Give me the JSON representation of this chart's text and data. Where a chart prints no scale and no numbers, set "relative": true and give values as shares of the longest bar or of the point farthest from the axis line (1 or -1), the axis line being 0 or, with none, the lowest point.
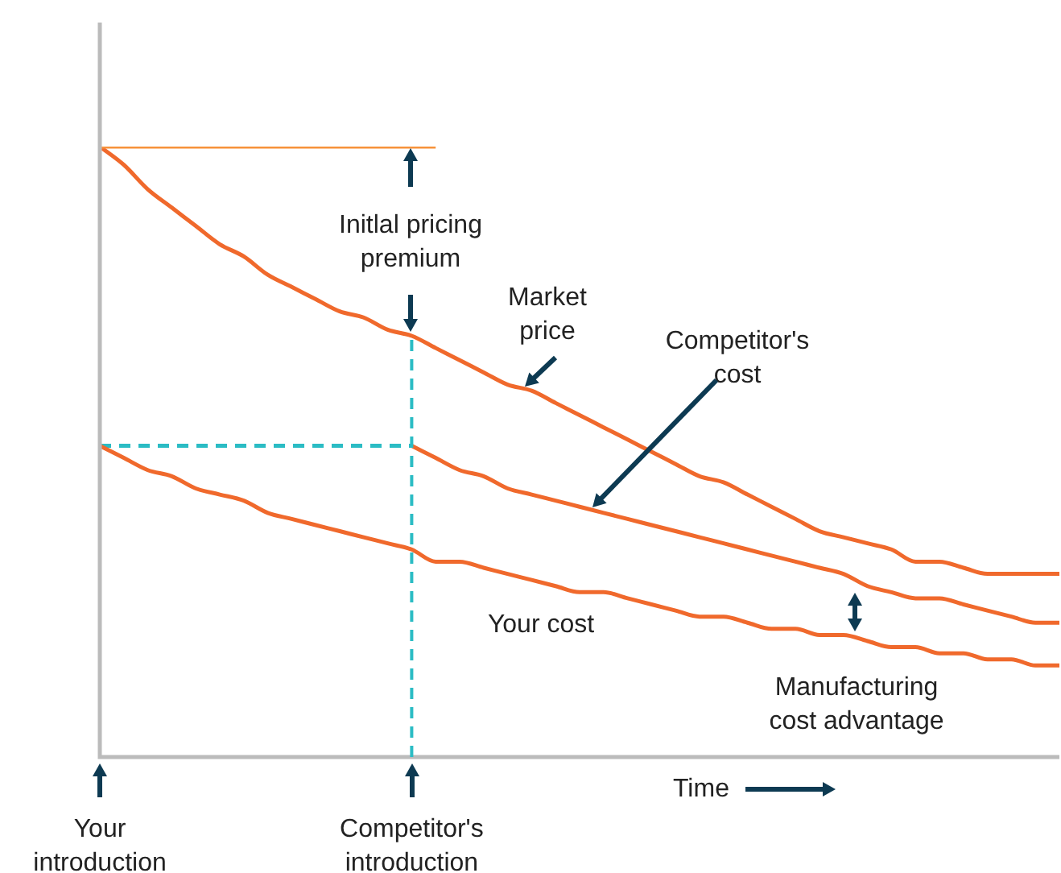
{
  "chart_data": {
    "type": "line",
    "relative": true,
    "tick_labels": "x",
    "marker": "none",
    "xlabel": "Time",
    "categories": [
      "Your introduction",
      null,
      null,
      null,
      null,
      null,
      null,
      null,
      null,
      null,
      null,
      null,
      null,
      "Competitor's introduction",
      null,
      null,
      null,
      null,
      null,
      null,
      null,
      null,
      null,
      null,
      null,
      null,
      null,
      null,
      null,
      null,
      null,
      null,
      null,
      null,
      null,
      null,
      null,
      null,
      null,
      null,
      null
    ],
    "series": [
      {
        "color": "#f7923a",
        "line_style": "solid",
        "values": [
          1.0,
          1.0,
          1.0,
          1.0,
          1.0,
          1.0,
          1.0,
          1.0,
          1.0,
          1.0,
          1.0,
          1.0,
          1.0,
          1.0,
          1.0,
          null,
          null,
          null,
          null,
          null,
          null,
          null,
          null,
          null,
          null,
          null,
          null,
          null,
          null,
          null,
          null,
          null,
          null,
          null,
          null,
          null,
          null,
          null,
          null,
          null,
          null
        ]
      },
      {
        "color": "#f0692c",
        "line_style": "solid",
        "values": [
          1.0,
          0.97,
          0.93,
          0.9,
          0.87,
          0.84,
          0.82,
          0.79,
          0.77,
          0.75,
          0.73,
          0.72,
          0.7,
          0.69,
          0.67,
          0.65,
          0.63,
          0.61,
          0.6,
          0.58,
          0.56,
          0.54,
          0.52,
          0.5,
          0.48,
          0.46,
          0.45,
          0.43,
          0.41,
          0.39,
          0.37,
          0.36,
          0.35,
          0.34,
          0.32,
          0.32,
          0.31,
          0.3,
          0.3,
          0.3,
          0.3
        ]
      },
      {
        "color": "#f0692c",
        "line_style": "solid",
        "values": [
          null,
          null,
          null,
          null,
          null,
          null,
          null,
          null,
          null,
          null,
          null,
          null,
          null,
          0.51,
          0.49,
          0.47,
          0.46,
          0.44,
          0.43,
          0.42,
          0.41,
          0.4,
          0.39,
          0.38,
          0.37,
          0.36,
          0.35,
          0.34,
          0.33,
          0.32,
          0.31,
          0.3,
          0.28,
          0.27,
          0.26,
          0.26,
          0.25,
          0.24,
          0.23,
          0.22,
          0.22
        ]
      },
      {
        "color": "#f0692c",
        "line_style": "solid",
        "values": [
          0.51,
          0.49,
          0.47,
          0.46,
          0.44,
          0.43,
          0.42,
          0.4,
          0.39,
          0.38,
          0.37,
          0.36,
          0.35,
          0.34,
          0.32,
          0.32,
          0.31,
          0.3,
          0.29,
          0.28,
          0.27,
          0.27,
          0.26,
          0.25,
          0.24,
          0.23,
          0.23,
          0.22,
          0.21,
          0.21,
          0.2,
          0.2,
          0.19,
          0.18,
          0.18,
          0.17,
          0.17,
          0.16,
          0.16,
          0.15,
          0.15
        ]
      },
      {
        "color": "#2bbcc4",
        "line_style": "dashed",
        "values": [
          0.51,
          0.51,
          0.51,
          0.51,
          0.51,
          0.51,
          0.51,
          0.51,
          0.51,
          0.51,
          0.51,
          0.51,
          0.51,
          0.51,
          null,
          null,
          null,
          null,
          null,
          null,
          null,
          null,
          null,
          null,
          null,
          null,
          null,
          null,
          null,
          null,
          null,
          null,
          null,
          null,
          null,
          null,
          null,
          null,
          null,
          null,
          null
        ]
      }
    ],
    "ref_lines": [
      {
        "axis": "x",
        "value": "Competitor's introduction",
        "color": "#2bbcc4",
        "line_style": "dashed"
      }
    ],
    "annotations": [
      "Initlal pricing premium",
      "Market price",
      "Competitor's cost",
      "Your cost",
      "Manufacturing cost advantage"
    ]
  }
}
